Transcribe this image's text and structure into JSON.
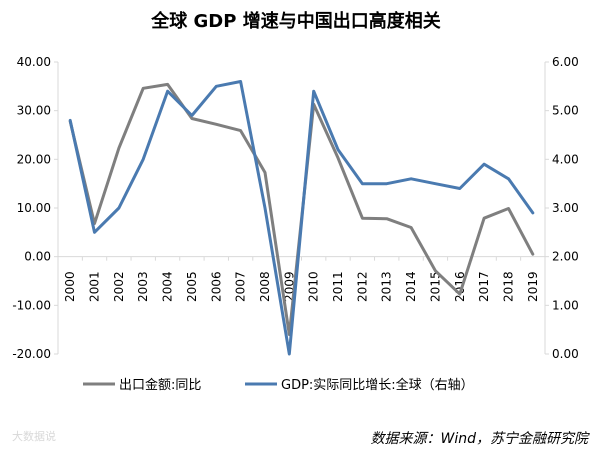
{
  "chart_data": {
    "type": "line",
    "title": "全球 GDP 增速与中国出口高度相关",
    "x": [
      "2000",
      "2001",
      "2002",
      "2003",
      "2004",
      "2005",
      "2006",
      "2007",
      "2008",
      "2009",
      "2010",
      "2011",
      "2012",
      "2013",
      "2014",
      "2015",
      "2016",
      "2017",
      "2018",
      "2019"
    ],
    "y_left": {
      "ylim": [
        -20,
        40
      ],
      "ticks": [
        "-20.00",
        "-10.00",
        "0.00",
        "10.00",
        "20.00",
        "30.00",
        "40.00"
      ]
    },
    "y_right": {
      "ylim": [
        0,
        6
      ],
      "ticks": [
        "0.00",
        "1.00",
        "2.00",
        "3.00",
        "4.00",
        "5.00",
        "6.00"
      ]
    },
    "series": [
      {
        "name": "出口金额:同比",
        "axis": "left",
        "color": "#7f7f7f",
        "values": [
          27.8,
          6.8,
          22.3,
          34.6,
          35.4,
          28.4,
          27.2,
          25.9,
          17.3,
          -16.0,
          31.3,
          20.3,
          7.9,
          7.8,
          6.0,
          -2.9,
          -7.7,
          7.9,
          9.9,
          0.5
        ]
      },
      {
        "name": "GDP:实际同比增长:全球（右轴）",
        "axis": "right",
        "color": "#4a7ab0",
        "values": [
          4.8,
          2.5,
          3.0,
          4.0,
          5.4,
          4.9,
          5.5,
          5.6,
          3.0,
          0.0,
          5.4,
          4.2,
          3.5,
          3.5,
          3.6,
          3.5,
          3.4,
          3.9,
          3.6,
          2.9
        ]
      }
    ],
    "legend": "bottom",
    "grid": false,
    "source": "数据来源：Wind，苏宁金融研究院",
    "watermark": "大数据说"
  }
}
